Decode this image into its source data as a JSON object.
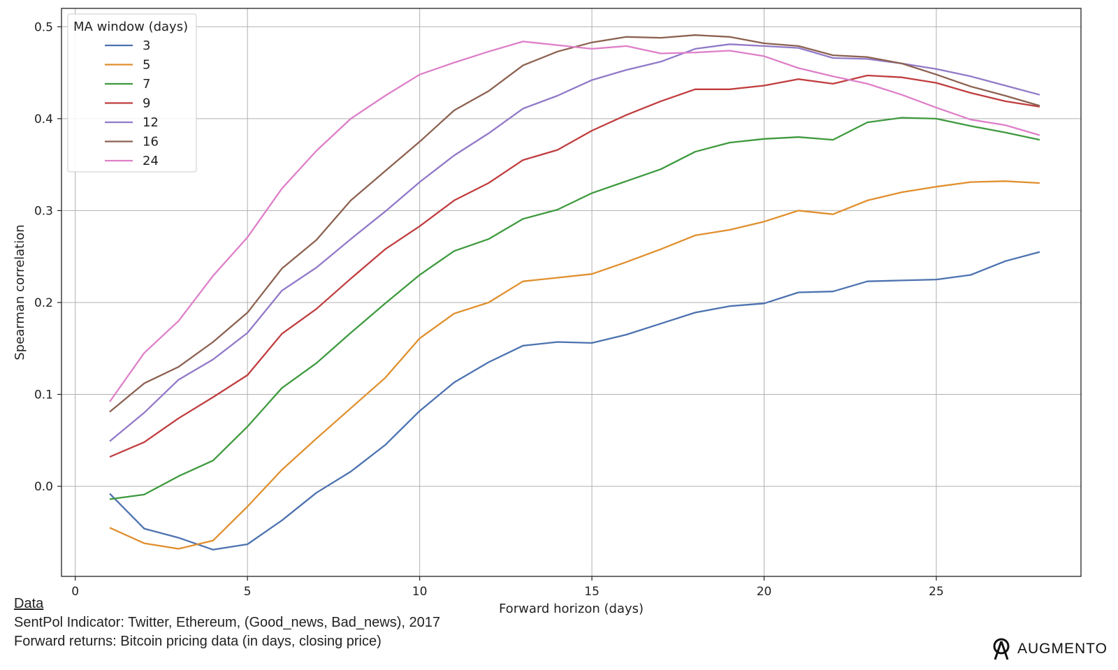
{
  "chart_data": {
    "type": "line",
    "xlabel": "Forward horizon (days)",
    "ylabel": "Spearman correlation",
    "xlim": [
      -0.4,
      29.2
    ],
    "ylim": [
      -0.098,
      0.52
    ],
    "xticks": [
      0,
      5,
      10,
      15,
      20,
      25
    ],
    "yticks": [
      0.0,
      0.1,
      0.2,
      0.3,
      0.4,
      0.5
    ],
    "xtick_labels": [
      "0",
      "5",
      "10",
      "15",
      "20",
      "25"
    ],
    "ytick_labels": [
      "0.0",
      "0.1",
      "0.2",
      "0.3",
      "0.4",
      "0.5"
    ],
    "grid": true,
    "legend": {
      "title": "MA window (days)",
      "position": "top-left"
    },
    "x": [
      1,
      2,
      3,
      4,
      5,
      6,
      7,
      8,
      9,
      10,
      11,
      12,
      13,
      14,
      15,
      16,
      17,
      18,
      19,
      20,
      21,
      22,
      23,
      24,
      25,
      26,
      27,
      28
    ],
    "series": [
      {
        "name": "3",
        "color": "#4c72b0",
        "values": [
          -0.008,
          -0.046,
          -0.056,
          -0.069,
          -0.063,
          -0.037,
          -0.007,
          0.016,
          0.045,
          0.082,
          0.113,
          0.135,
          0.153,
          0.157,
          0.156,
          0.165,
          0.177,
          0.189,
          0.196,
          0.199,
          0.211,
          0.212,
          0.223,
          0.224,
          0.225,
          0.23,
          0.245,
          0.255
        ]
      },
      {
        "name": "5",
        "color": "#e08f2e",
        "values": [
          -0.045,
          -0.062,
          -0.068,
          -0.059,
          -0.022,
          0.018,
          0.052,
          0.085,
          0.118,
          0.161,
          0.188,
          0.2,
          0.223,
          0.227,
          0.231,
          0.244,
          0.258,
          0.273,
          0.279,
          0.288,
          0.3,
          0.296,
          0.311,
          0.32,
          0.326,
          0.331,
          0.332,
          0.33
        ]
      },
      {
        "name": "7",
        "color": "#3e9a3e",
        "values": [
          -0.014,
          -0.009,
          0.011,
          0.028,
          0.065,
          0.107,
          0.134,
          0.167,
          0.199,
          0.23,
          0.256,
          0.269,
          0.291,
          0.301,
          0.319,
          0.332,
          0.345,
          0.364,
          0.374,
          0.378,
          0.38,
          0.377,
          0.396,
          0.401,
          0.4,
          0.392,
          0.385,
          0.377
        ]
      },
      {
        "name": "9",
        "color": "#c03d3e",
        "values": [
          0.032,
          0.048,
          0.074,
          0.097,
          0.121,
          0.166,
          0.193,
          0.226,
          0.258,
          0.283,
          0.311,
          0.33,
          0.355,
          0.366,
          0.387,
          0.404,
          0.419,
          0.432,
          0.432,
          0.436,
          0.443,
          0.438,
          0.447,
          0.445,
          0.439,
          0.428,
          0.419,
          0.413
        ]
      },
      {
        "name": "12",
        "color": "#9179c8",
        "values": [
          0.049,
          0.08,
          0.116,
          0.138,
          0.167,
          0.213,
          0.238,
          0.269,
          0.299,
          0.331,
          0.36,
          0.384,
          0.411,
          0.425,
          0.442,
          0.453,
          0.462,
          0.476,
          0.481,
          0.479,
          0.477,
          0.466,
          0.465,
          0.46,
          0.454,
          0.446,
          0.436,
          0.426
        ]
      },
      {
        "name": "16",
        "color": "#8c6150",
        "values": [
          0.081,
          0.112,
          0.13,
          0.157,
          0.189,
          0.237,
          0.268,
          0.311,
          0.343,
          0.375,
          0.409,
          0.43,
          0.458,
          0.473,
          0.483,
          0.489,
          0.488,
          0.491,
          0.489,
          0.482,
          0.479,
          0.469,
          0.467,
          0.46,
          0.448,
          0.435,
          0.425,
          0.414
        ]
      },
      {
        "name": "24",
        "color": "#de7fc8",
        "values": [
          0.092,
          0.145,
          0.18,
          0.229,
          0.271,
          0.324,
          0.365,
          0.4,
          0.425,
          0.448,
          0.461,
          0.473,
          0.484,
          0.48,
          0.476,
          0.479,
          0.471,
          0.472,
          0.474,
          0.468,
          0.455,
          0.446,
          0.438,
          0.426,
          0.412,
          0.399,
          0.393,
          0.382
        ]
      }
    ]
  },
  "footer": {
    "heading": "Data",
    "line1": "SentPol Indicator: Twitter, Ethereum, (Good_news, Bad_news), 2017",
    "line2": "Forward returns: Bitcoin pricing data (in days, closing price)"
  },
  "brand": {
    "name": "AUGMENTO",
    "icon": "augmento-logo-icon"
  }
}
